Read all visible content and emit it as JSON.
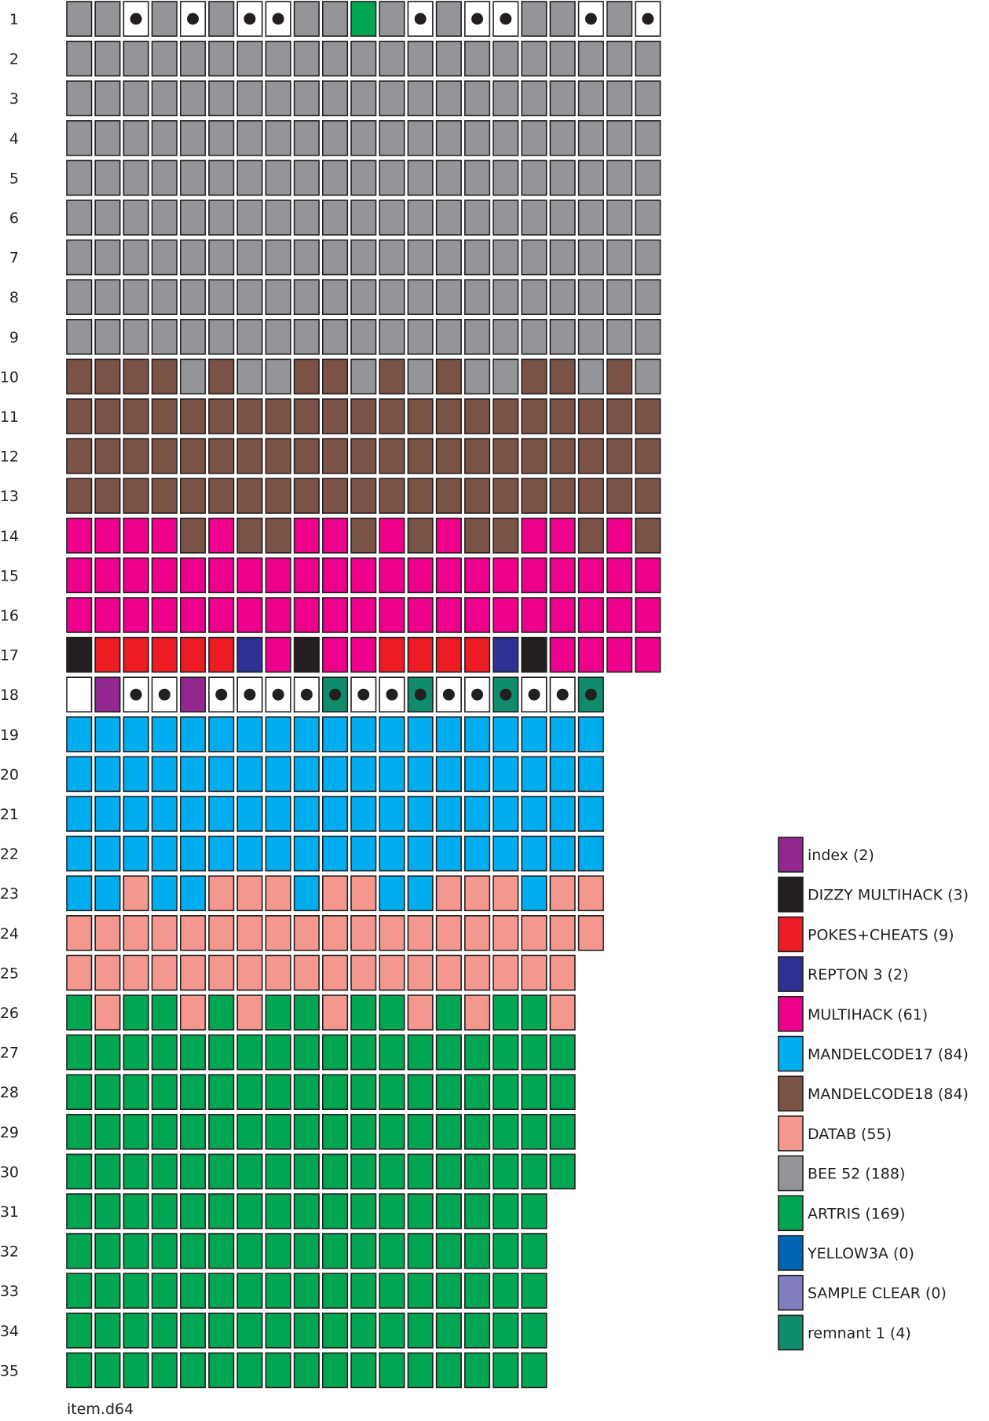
{
  "title": "item.d64",
  "colors": {
    "grey": "#939598",
    "brown": "#7b5246",
    "magenta": "#ec008c",
    "red": "#ed1c24",
    "navy": "#2e3192",
    "black": "#231f20",
    "cyan": "#00aeef",
    "salmon": "#f4978e",
    "green": "#00a651",
    "purple": "#92278f",
    "teal": "#0f8c6c",
    "free": "#ffffff",
    "yellow3a": "#0066b3",
    "sample": "#7f7fbf",
    "dot": "#231f20"
  },
  "legend": [
    {
      "label": "index (2)",
      "color": "purple"
    },
    {
      "label": "DIZZY MULTIHACK (3)",
      "color": "black"
    },
    {
      "label": "POKES+CHEATS (9)",
      "color": "red"
    },
    {
      "label": "REPTON 3 (2)",
      "color": "navy"
    },
    {
      "label": "MULTIHACK (61)",
      "color": "magenta"
    },
    {
      "label": "MANDELCODE17 (84)",
      "color": "cyan"
    },
    {
      "label": "MANDELCODE18 (84)",
      "color": "brown"
    },
    {
      "label": "DATAB (55)",
      "color": "salmon"
    },
    {
      "label": "BEE 52 (188)",
      "color": "grey"
    },
    {
      "label": "ARTRIS (169)",
      "color": "green"
    },
    {
      "label": "YELLOW3A (0)",
      "color": "yellow3a"
    },
    {
      "label": "SAMPLE CLEAR (0)",
      "color": "sample"
    },
    {
      "label": "remnant 1 (4)",
      "color": "teal"
    }
  ],
  "tracks": [
    {
      "label": "1",
      "sectors": "GG.G.G..GGAG.G..GG.G."
    },
    {
      "label": "2",
      "sectors": "GGGGGGGGGGGGGGGGGGGGG"
    },
    {
      "label": "3",
      "sectors": "GGGGGGGGGGGGGGGGGGGGG"
    },
    {
      "label": "4",
      "sectors": "GGGGGGGGGGGGGGGGGGGGG"
    },
    {
      "label": "5",
      "sectors": "GGGGGGGGGGGGGGGGGGGGG"
    },
    {
      "label": "6",
      "sectors": "GGGGGGGGGGGGGGGGGGGGG"
    },
    {
      "label": "7",
      "sectors": "GGGGGGGGGGGGGGGGGGGGG"
    },
    {
      "label": "8",
      "sectors": "GGGGGGGGGGGGGGGGGGGGG"
    },
    {
      "label": "9",
      "sectors": "GGGGGGGGGGGGGGGGGGGGG"
    },
    {
      "label": "10",
      "sectors": "BBBBGBGGBBGBGBGGBBGBG"
    },
    {
      "label": "11",
      "sectors": "BBBBBBBBBBBBBBBBBBBBB"
    },
    {
      "label": "12",
      "sectors": "BBBBBBBBBBBBBBBBBBBBB"
    },
    {
      "label": "13",
      "sectors": "BBBBBBBBBBBBBBBBBBBBB"
    },
    {
      "label": "14",
      "sectors": "MMMMBMBBMMBMBMBBMMBMB"
    },
    {
      "label": "15",
      "sectors": "MMMMMMMMMMMMMMMMMMMMM"
    },
    {
      "label": "16",
      "sectors": "MMMMMMMMMMMMMMMMMMMMM"
    },
    {
      "label": "17",
      "sectors": "KRRRRRNMKMMRRRRNKMMMM"
    },
    {
      "label": "18",
      "sectors": "FP..P....T..T..T..T"
    },
    {
      "label": "19",
      "sectors": "CCCCCCCCCCCCCCCCCCC"
    },
    {
      "label": "20",
      "sectors": "CCCCCCCCCCCCCCCCCCC"
    },
    {
      "label": "21",
      "sectors": "CCCCCCCCCCCCCCCCCCC"
    },
    {
      "label": "22",
      "sectors": "CCCCCCCCCCCCCCCCCCC"
    },
    {
      "label": "23",
      "sectors": "CCSCCSSSCSSCCSSSCSS"
    },
    {
      "label": "24",
      "sectors": "SSSSSSSSSSSSSSSSSSS"
    },
    {
      "label": "25",
      "sectors": "SSSSSSSSSSSSSSSSSS"
    },
    {
      "label": "26",
      "sectors": "ASAASASAASAASASAAS"
    },
    {
      "label": "27",
      "sectors": "AAAAAAAAAAAAAAAAAA"
    },
    {
      "label": "28",
      "sectors": "AAAAAAAAAAAAAAAAAA"
    },
    {
      "label": "29",
      "sectors": "AAAAAAAAAAAAAAAAAA"
    },
    {
      "label": "30",
      "sectors": "AAAAAAAAAAAAAAAAAA"
    },
    {
      "label": "31",
      "sectors": "AAAAAAAAAAAAAAAAA"
    },
    {
      "label": "32",
      "sectors": "AAAAAAAAAAAAAAAAA"
    },
    {
      "label": "33",
      "sectors": "AAAAAAAAAAAAAAAAA"
    },
    {
      "label": "34",
      "sectors": "AAAAAAAAAAAAAAAAA"
    },
    {
      "label": "35",
      "sectors": "AAAAAAAAAAAAAAAAA"
    }
  ],
  "sector_key": {
    "G": {
      "color": "grey"
    },
    "B": {
      "color": "brown"
    },
    "M": {
      "color": "magenta"
    },
    "R": {
      "color": "red"
    },
    "N": {
      "color": "navy"
    },
    "K": {
      "color": "black"
    },
    "C": {
      "color": "cyan"
    },
    "S": {
      "color": "salmon"
    },
    "A": {
      "color": "green"
    },
    "P": {
      "color": "purple"
    },
    "T": {
      "color": "teal",
      "dot": true
    },
    "F": {
      "color": "free"
    },
    ".": {
      "color": "free",
      "dot": true
    }
  }
}
